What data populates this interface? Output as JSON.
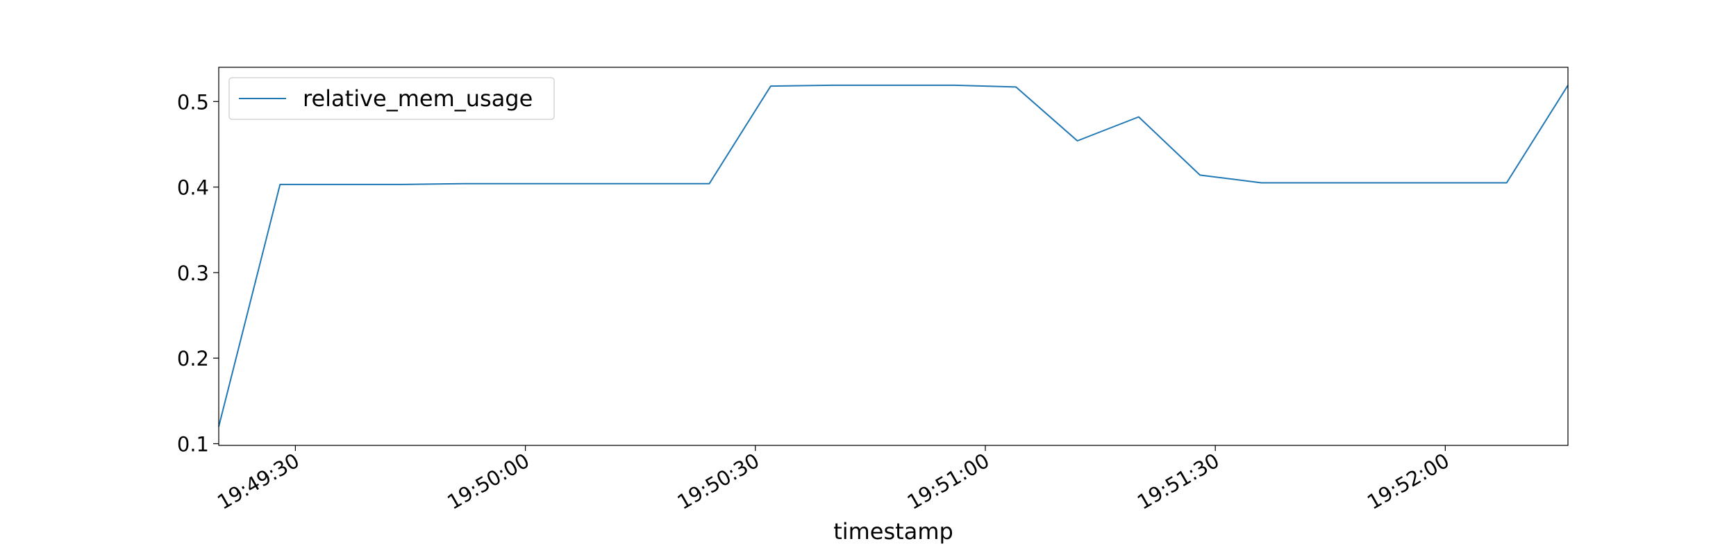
{
  "chart_data": {
    "type": "line",
    "title": "",
    "xlabel": "timestamp",
    "ylabel": "",
    "x_start": "19:49:20",
    "x_end": "19:52:16",
    "xlim": [
      "19:49:20",
      "19:52:16"
    ],
    "ylim": [
      0.098,
      0.54
    ],
    "x_ticks": [
      "19:49:30",
      "19:50:00",
      "19:50:30",
      "19:51:00",
      "19:51:30",
      "19:52:00"
    ],
    "y_ticks": [
      0.1,
      0.2,
      0.3,
      0.4,
      0.5
    ],
    "y_tick_labels": [
      "0.1",
      "0.2",
      "0.3",
      "0.4",
      "0.5"
    ],
    "grid": false,
    "legend_position": "top-left",
    "series": [
      {
        "name": "relative_mem_usage",
        "color": "#1f77b4",
        "points": [
          {
            "x": "19:49:20",
            "y": 0.12
          },
          {
            "x": "19:49:28",
            "y": 0.403
          },
          {
            "x": "19:49:36",
            "y": 0.403
          },
          {
            "x": "19:49:44",
            "y": 0.403
          },
          {
            "x": "19:49:52",
            "y": 0.404
          },
          {
            "x": "19:50:00",
            "y": 0.404
          },
          {
            "x": "19:50:08",
            "y": 0.404
          },
          {
            "x": "19:50:16",
            "y": 0.404
          },
          {
            "x": "19:50:24",
            "y": 0.404
          },
          {
            "x": "19:50:32",
            "y": 0.518
          },
          {
            "x": "19:50:40",
            "y": 0.519
          },
          {
            "x": "19:50:48",
            "y": 0.519
          },
          {
            "x": "19:50:56",
            "y": 0.519
          },
          {
            "x": "19:51:04",
            "y": 0.517
          },
          {
            "x": "19:51:12",
            "y": 0.454
          },
          {
            "x": "19:51:20",
            "y": 0.482
          },
          {
            "x": "19:51:28",
            "y": 0.414
          },
          {
            "x": "19:51:36",
            "y": 0.405
          },
          {
            "x": "19:51:44",
            "y": 0.405
          },
          {
            "x": "19:51:52",
            "y": 0.405
          },
          {
            "x": "19:52:00",
            "y": 0.405
          },
          {
            "x": "19:52:08",
            "y": 0.405
          },
          {
            "x": "19:52:16",
            "y": 0.519
          }
        ]
      }
    ]
  }
}
